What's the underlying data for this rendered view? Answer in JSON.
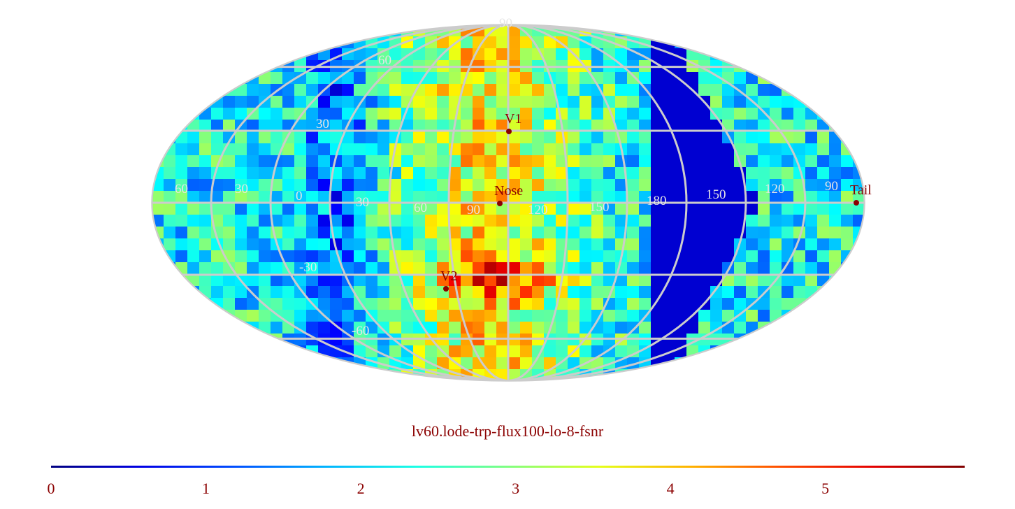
{
  "title": "lv60.lode-trp-flux100-lo-8-fsnr",
  "projection": "mollweide",
  "colormap": "jet",
  "grid_color": "#cccccc",
  "marker_color": "#8b0000",
  "meridian_labels": [
    "60",
    "30",
    "0",
    "30",
    "60",
    "90",
    "120",
    "150",
    "180",
    "150",
    "120",
    "90"
  ],
  "parallel_labels": [
    "90",
    "60",
    "30",
    "-30",
    "-60"
  ],
  "markers": [
    {
      "name": "V1"
    },
    {
      "name": "Nose"
    },
    {
      "name": "V2"
    },
    {
      "name": "Tail"
    }
  ],
  "colorbar": {
    "min": 0,
    "max": 5.9,
    "ticks": [
      "0",
      "1",
      "2",
      "3",
      "4",
      "5"
    ]
  }
}
